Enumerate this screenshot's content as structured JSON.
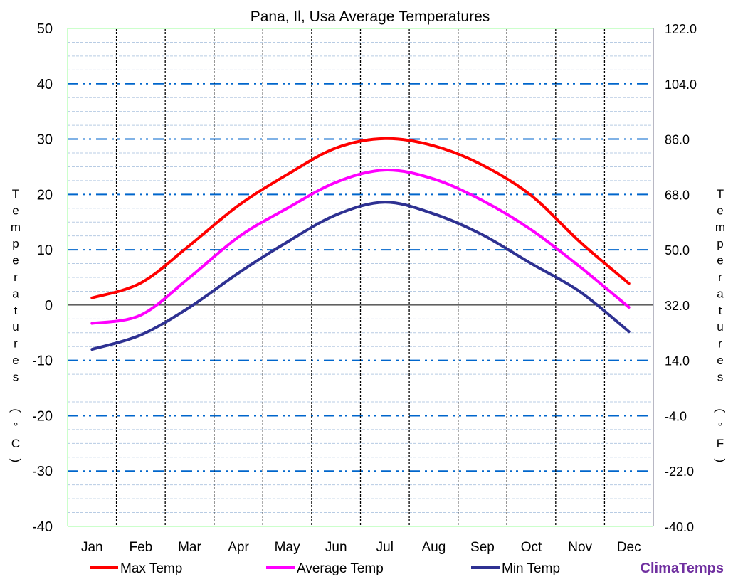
{
  "chart_data": {
    "type": "line",
    "title": "Pana, Il, Usa Average Temperatures",
    "ylabel": "Temperatures (°C)",
    "ylabel_right": "Temperatures (°F)",
    "ylim": [
      -40,
      50
    ],
    "y_ticks": [
      "50",
      "40",
      "30",
      "20",
      "10",
      "0",
      "-10",
      "-20",
      "-30",
      "-40"
    ],
    "y_ticks_right": [
      "122.0",
      "104.0",
      "86.0",
      "68.0",
      "50.0",
      "32.0",
      "14.0",
      "-4.0",
      "-22.0",
      "-40.0"
    ],
    "categories": [
      "Jan",
      "Feb",
      "Mar",
      "Apr",
      "May",
      "Jun",
      "Jul",
      "Aug",
      "Sep",
      "Oct",
      "Nov",
      "Dec"
    ],
    "grid": true,
    "legend_placement": "bottom",
    "series": [
      {
        "name": "Max Temp",
        "color": "#ff0000",
        "values": [
          1.3,
          4.0,
          10.8,
          18.0,
          23.6,
          28.4,
          30.1,
          28.8,
          25.3,
          19.8,
          11.4,
          3.9
        ]
      },
      {
        "name": "Average Temp",
        "color": "#ff00ff",
        "values": [
          -3.3,
          -1.8,
          5.0,
          12.3,
          17.5,
          22.2,
          24.4,
          22.8,
          18.9,
          13.6,
          6.9,
          -0.4
        ]
      },
      {
        "name": "Min Temp",
        "color": "#2e3192",
        "values": [
          -8.0,
          -5.4,
          -0.4,
          5.8,
          11.4,
          16.3,
          18.6,
          16.5,
          12.7,
          7.5,
          2.4,
          -4.8
        ]
      }
    ]
  },
  "brand": "ClimaTemps",
  "brand_color": "#7030a0"
}
